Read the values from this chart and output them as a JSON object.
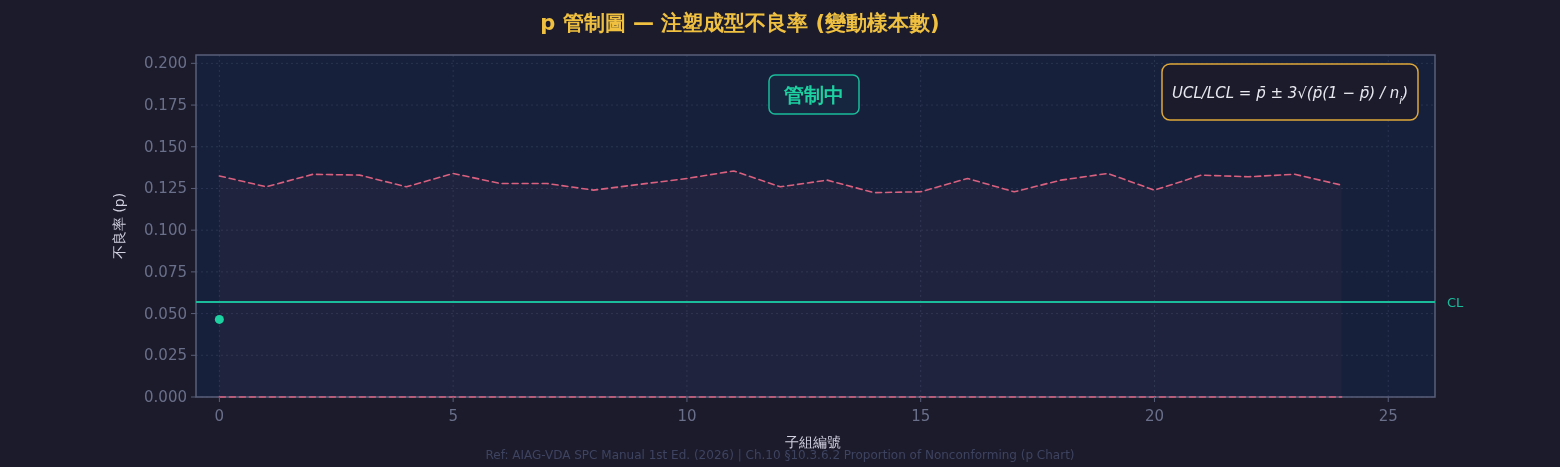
{
  "chart_data": {
    "type": "line",
    "title": "p 管制圖 — 注塑成型不良率 (變動樣本數)",
    "xlabel": "子組編號",
    "ylabel": "不良率 (p)",
    "x": [
      0,
      1,
      2,
      3,
      4,
      5,
      6,
      7,
      8,
      9,
      10,
      11,
      12,
      13,
      14,
      15,
      16,
      17,
      18,
      19,
      20,
      21,
      22,
      23,
      24
    ],
    "series": [
      {
        "type": "area",
        "color": "#d9607f",
        "line_style": "dashed",
        "values": [
          0.1325,
          0.126,
          0.1335,
          0.133,
          0.126,
          0.134,
          0.128,
          0.128,
          0.124,
          0.1275,
          0.131,
          0.1355,
          0.126,
          0.13,
          0.1225,
          0.123,
          0.131,
          0.123,
          0.13,
          0.134,
          0.124,
          0.133,
          0.132,
          0.1335,
          0.127
        ]
      },
      {
        "color": "#d9607f",
        "line_style": "dashed",
        "values": [
          0,
          0,
          0,
          0,
          0,
          0,
          0,
          0,
          0,
          0,
          0,
          0,
          0,
          0,
          0,
          0,
          0,
          0,
          0,
          0,
          0,
          0,
          0,
          0,
          0
        ]
      },
      {
        "type": "scatter",
        "color": "#1dd1a1",
        "marker": "circle",
        "values": [
          0.0465,
          null,
          null,
          null,
          null,
          null,
          null,
          null,
          null,
          null,
          null,
          null,
          null,
          null,
          null,
          null,
          null,
          null,
          null,
          null,
          null,
          null,
          null,
          null,
          null
        ]
      }
    ],
    "ref_lines": [
      {
        "axis": "y",
        "value": 0.057,
        "label": "CL",
        "color": "#1abc9c",
        "line_style": "solid"
      }
    ],
    "annotations": [
      "管制中",
      "UCL/LCL = p̄ ± 3√(p̄(1 − p̄) / n$_{i}$)",
      "Ref: AIAG-VDA SPC Manual 1st Ed. (2026) | Ch.10 §10.3.6.2 Proportion of Nonconforming (p Chart)"
    ],
    "xlim": [
      -0.5,
      26
    ],
    "xticks": [
      0,
      5,
      10,
      15,
      20,
      25
    ],
    "ylim": [
      0,
      0.205
    ],
    "yticks": [
      {
        "value": 0,
        "label": "0.000"
      },
      {
        "value": 0.025,
        "label": "0.025"
      },
      {
        "value": 0.05,
        "label": "0.050"
      },
      {
        "value": 0.075,
        "label": "0.075"
      },
      {
        "value": 0.1,
        "label": "0.100"
      },
      {
        "value": 0.125,
        "label": "0.125"
      },
      {
        "value": 0.15,
        "label": "0.150"
      },
      {
        "value": 0.175,
        "label": "0.175"
      },
      {
        "value": 0.2,
        "label": "0.200"
      }
    ],
    "grid": true
  }
}
